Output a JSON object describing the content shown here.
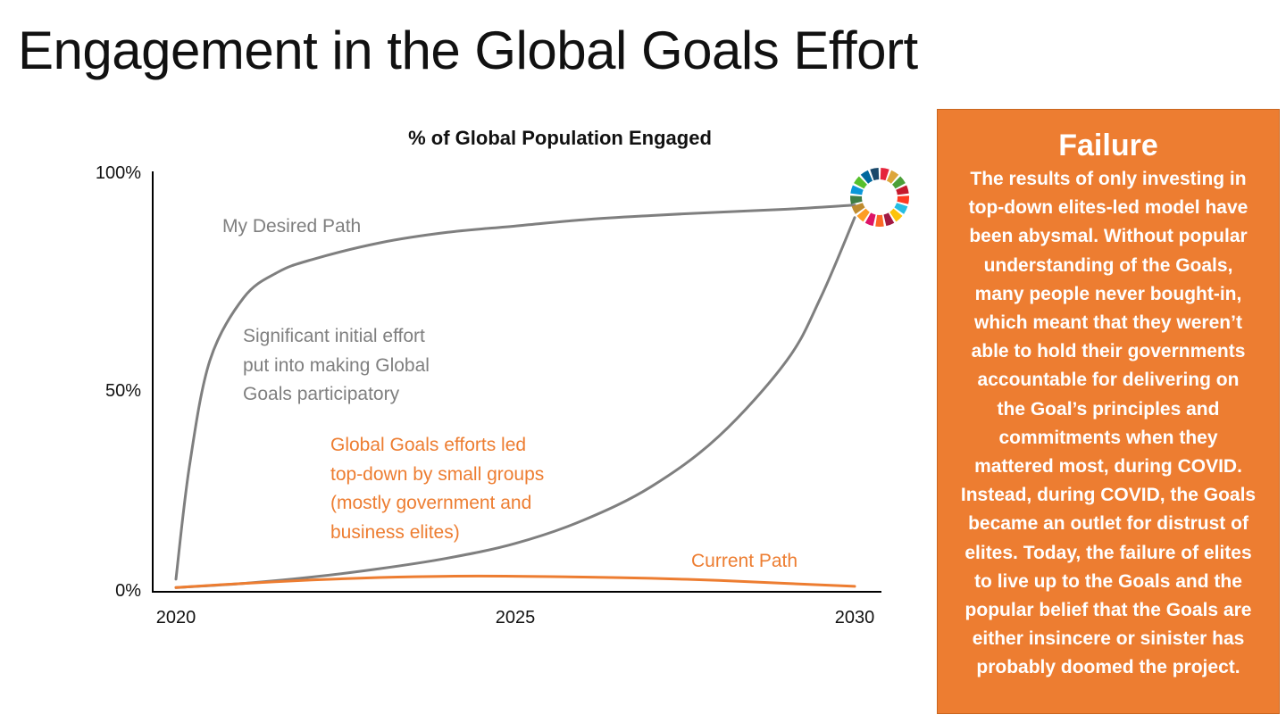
{
  "slide": {
    "title": "Engagement in the Global Goals Effort"
  },
  "chart_data": {
    "type": "line",
    "title": "% of Global Population Engaged",
    "xlabel": "",
    "ylabel": "",
    "xlim": [
      2020,
      2030
    ],
    "ylim": [
      0,
      100
    ],
    "x_ticks": [
      "2020",
      "2025",
      "2030"
    ],
    "y_ticks": [
      "0%",
      "50%",
      "100%"
    ],
    "series": [
      {
        "name": "My Desired Path",
        "color": "#7f7f7f",
        "x": [
          2020,
          2020.2,
          2020.5,
          2021,
          2021.5,
          2022,
          2023,
          2024,
          2025,
          2026,
          2027,
          2028,
          2029,
          2030
        ],
        "y": [
          3,
          30,
          55,
          70,
          76,
          79,
          83,
          85.5,
          87,
          88.5,
          89.5,
          90.3,
          91,
          92
        ]
      },
      {
        "name": "Top-down path",
        "color": "#7f7f7f",
        "x": [
          2020,
          2021,
          2022,
          2023,
          2024,
          2025,
          2026,
          2027,
          2028,
          2029,
          2029.5,
          2030
        ],
        "y": [
          1,
          2,
          3.5,
          5.5,
          8,
          11.5,
          17,
          25,
          37,
          55,
          70,
          89
        ]
      },
      {
        "name": "Current Path",
        "color": "#ed7d31",
        "x": [
          2020,
          2021,
          2022,
          2023,
          2024,
          2025,
          2026,
          2027,
          2028,
          2029,
          2030
        ],
        "y": [
          1,
          2,
          2.8,
          3.4,
          3.7,
          3.7,
          3.5,
          3.2,
          2.7,
          2,
          1.3
        ]
      }
    ],
    "annotations": [
      {
        "id": "desired",
        "text": "My Desired Path",
        "color": "#7f7f7f"
      },
      {
        "id": "significant",
        "lines": [
          "Significant initial effort",
          "put into making Global",
          "Goals participatory"
        ],
        "color": "#7f7f7f"
      },
      {
        "id": "topdown",
        "lines": [
          "Global Goals efforts led",
          "top-down by small groups",
          "(mostly government and",
          "business elites)"
        ],
        "color": "#ed7d31"
      },
      {
        "id": "current",
        "text": "Current Path",
        "color": "#ed7d31"
      }
    ],
    "sdg_wheel_colors": [
      "#e5243b",
      "#dda63a",
      "#4c9f38",
      "#c5192d",
      "#ff3a21",
      "#26bde2",
      "#fcc30b",
      "#a21942",
      "#fd6925",
      "#dd1367",
      "#fd9d24",
      "#bf8b2e",
      "#3f7e44",
      "#0a97d9",
      "#56c02b",
      "#00689d",
      "#19486a"
    ]
  },
  "failure_box": {
    "heading": "Failure",
    "lines": [
      "The results of only investing in",
      "top-down elites-led model have",
      "been abysmal. Without popular",
      "understanding of the Goals,",
      "many people never bought-in,",
      "which meant that they weren’t",
      "able to hold their governments",
      "accountable for delivering on",
      "the Goal’s principles and",
      "commitments when they",
      "mattered most, during COVID.",
      "Instead, during COVID, the Goals",
      "became an outlet for distrust of",
      "elites. Today, the failure of elites",
      "to live up to the Goals and the",
      "popular belief that the Goals are",
      "either insincere or sinister has",
      "probably doomed the project."
    ]
  }
}
